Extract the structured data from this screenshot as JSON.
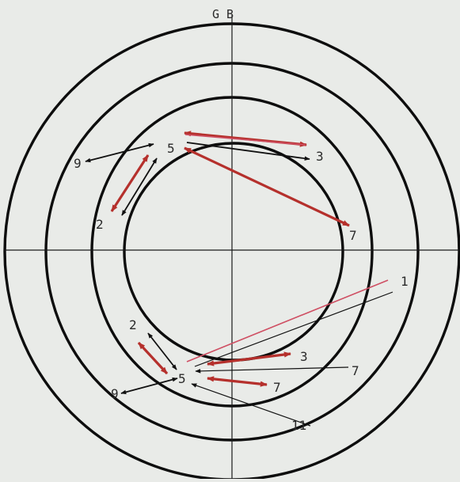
{
  "diagram": {
    "top_label": "G B",
    "labels": {
      "upper_five": "5",
      "upper_three": "3",
      "upper_nine": "9",
      "upper_two": "2",
      "upper_seven": "7",
      "right_one": "1",
      "lower_two": "2",
      "lower_three": "3",
      "lower_seven_right": "7",
      "lower_five": "5",
      "lower_seven": "7",
      "lower_nine": "9",
      "lower_eleven": "11"
    },
    "colors": {
      "background": "#e9ebe8",
      "rings": "#0d0d0d",
      "arrow_black": "#111111",
      "arrow_red": "#b5302c",
      "line_pink": "#cf4f63"
    }
  }
}
